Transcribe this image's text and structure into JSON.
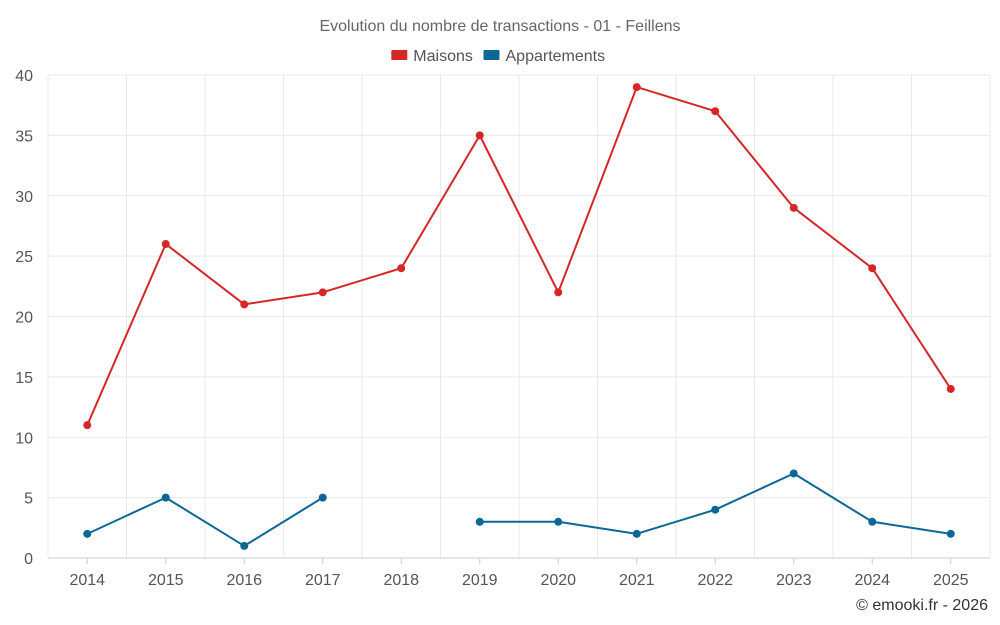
{
  "chart_data": {
    "type": "line",
    "title": "Evolution du nombre de transactions - 01 - Feillens",
    "categories": [
      "2014",
      "2015",
      "2016",
      "2017",
      "2018",
      "2019",
      "2020",
      "2021",
      "2022",
      "2023",
      "2024",
      "2025"
    ],
    "ylim": [
      0,
      40
    ],
    "yticks": [
      0,
      5,
      10,
      15,
      20,
      25,
      30,
      35,
      40
    ],
    "grid": true,
    "legend_position": "top-center",
    "xlabel": "",
    "ylabel": "",
    "series": [
      {
        "name": "Maisons",
        "color": "#d62728",
        "values": [
          11,
          26,
          21,
          22,
          24,
          35,
          22,
          39,
          37,
          29,
          24,
          14
        ]
      },
      {
        "name": "Appartements",
        "color": "#0a6796",
        "values": [
          2,
          5,
          1,
          5,
          null,
          3,
          3,
          2,
          4,
          7,
          3,
          2
        ]
      }
    ]
  },
  "credit": "© emooki.fr - 2026"
}
